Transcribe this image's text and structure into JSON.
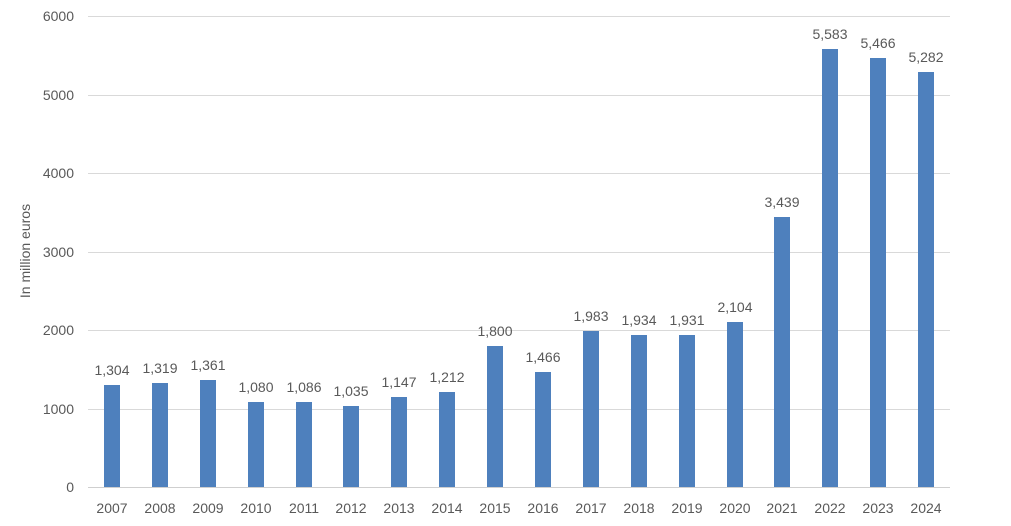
{
  "chart_data": {
    "type": "bar",
    "title": "",
    "xlabel": "",
    "ylabel": "In million euros",
    "categories": [
      "2007",
      "2008",
      "2009",
      "2010",
      "2011",
      "2012",
      "2013",
      "2014",
      "2015",
      "2016",
      "2017",
      "2018",
      "2019",
      "2020",
      "2021",
      "2022",
      "2023",
      "2024"
    ],
    "values": [
      1304,
      1319,
      1361,
      1080,
      1086,
      1035,
      1147,
      1212,
      1800,
      1466,
      1983,
      1934,
      1931,
      2104,
      3439,
      5583,
      5466,
      5282
    ],
    "data_labels": [
      "1,304",
      "1,319",
      "1,361",
      "1,080",
      "1,086",
      "1,035",
      "1,147",
      "1,212",
      "1,800",
      "1,466",
      "1,983",
      "1,934",
      "1,931",
      "2,104",
      "3,439",
      "5,583",
      "5,466",
      "5,282"
    ],
    "ylim": [
      0,
      6000
    ],
    "ytick_interval": 1000,
    "ytick_labels": [
      "0",
      "1000",
      "2000",
      "3000",
      "4000",
      "5000",
      "6000"
    ],
    "grid": true,
    "legend": false,
    "colors": {
      "bar": "#4E80BD",
      "gridline": "#D9D9D9",
      "axis_line": "#CFCFCF",
      "text": "#595959",
      "background": "#FFFFFF"
    }
  }
}
